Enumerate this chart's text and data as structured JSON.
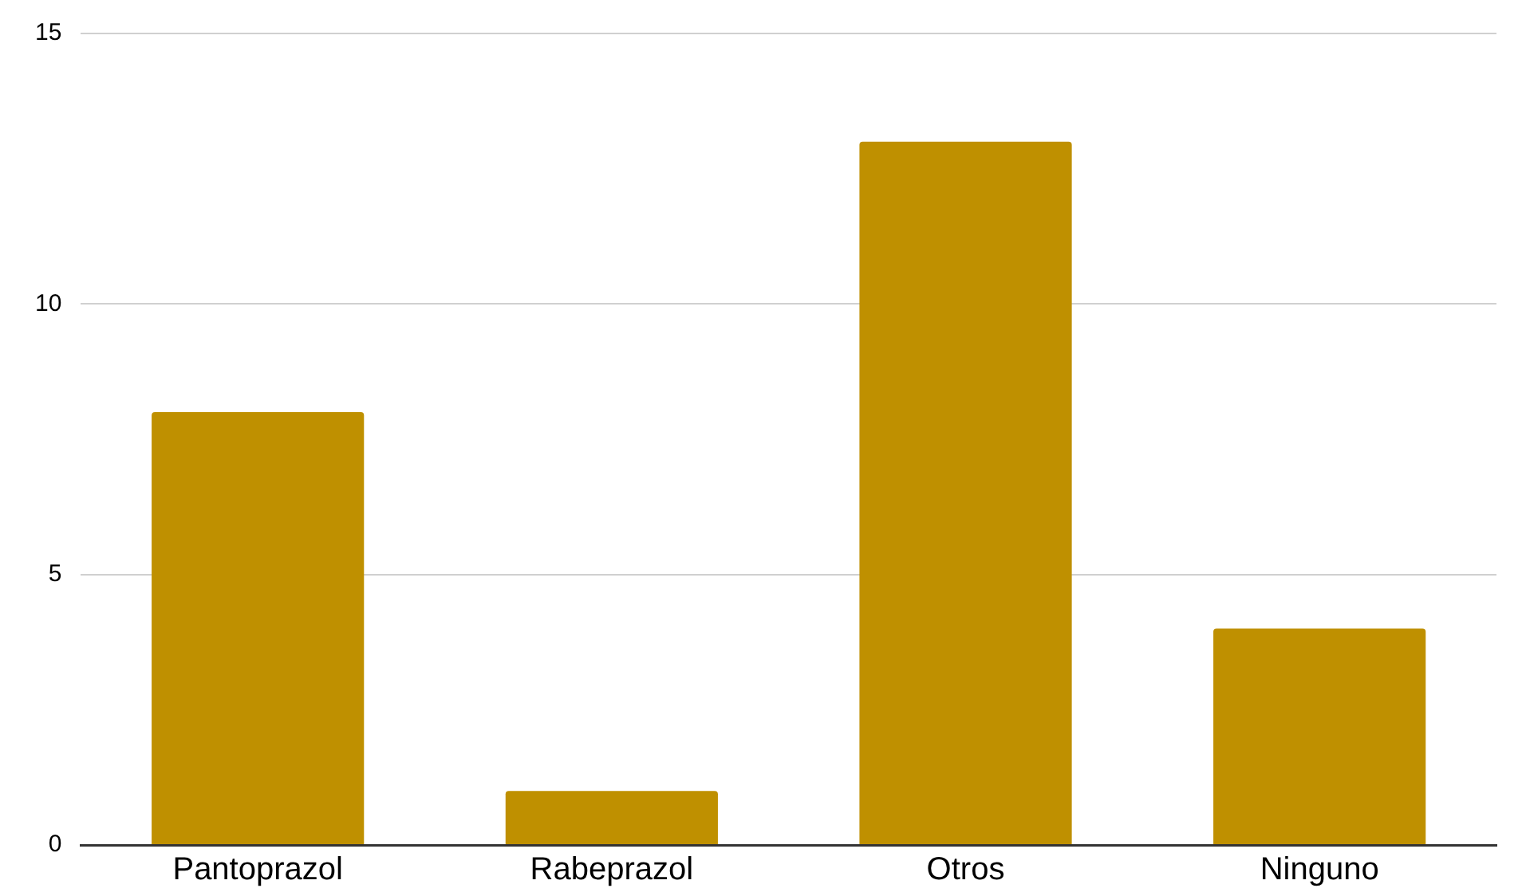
{
  "chart_data": {
    "type": "bar",
    "categories": [
      "Pantoprazol",
      "Rabeprazol",
      "Otros",
      "Ninguno"
    ],
    "values": [
      8,
      1,
      13,
      4
    ],
    "color": "#bf9000",
    "ylim": [
      0,
      15
    ],
    "yticks": [
      0,
      5,
      10,
      15
    ],
    "grid": "y",
    "legend": false
  }
}
